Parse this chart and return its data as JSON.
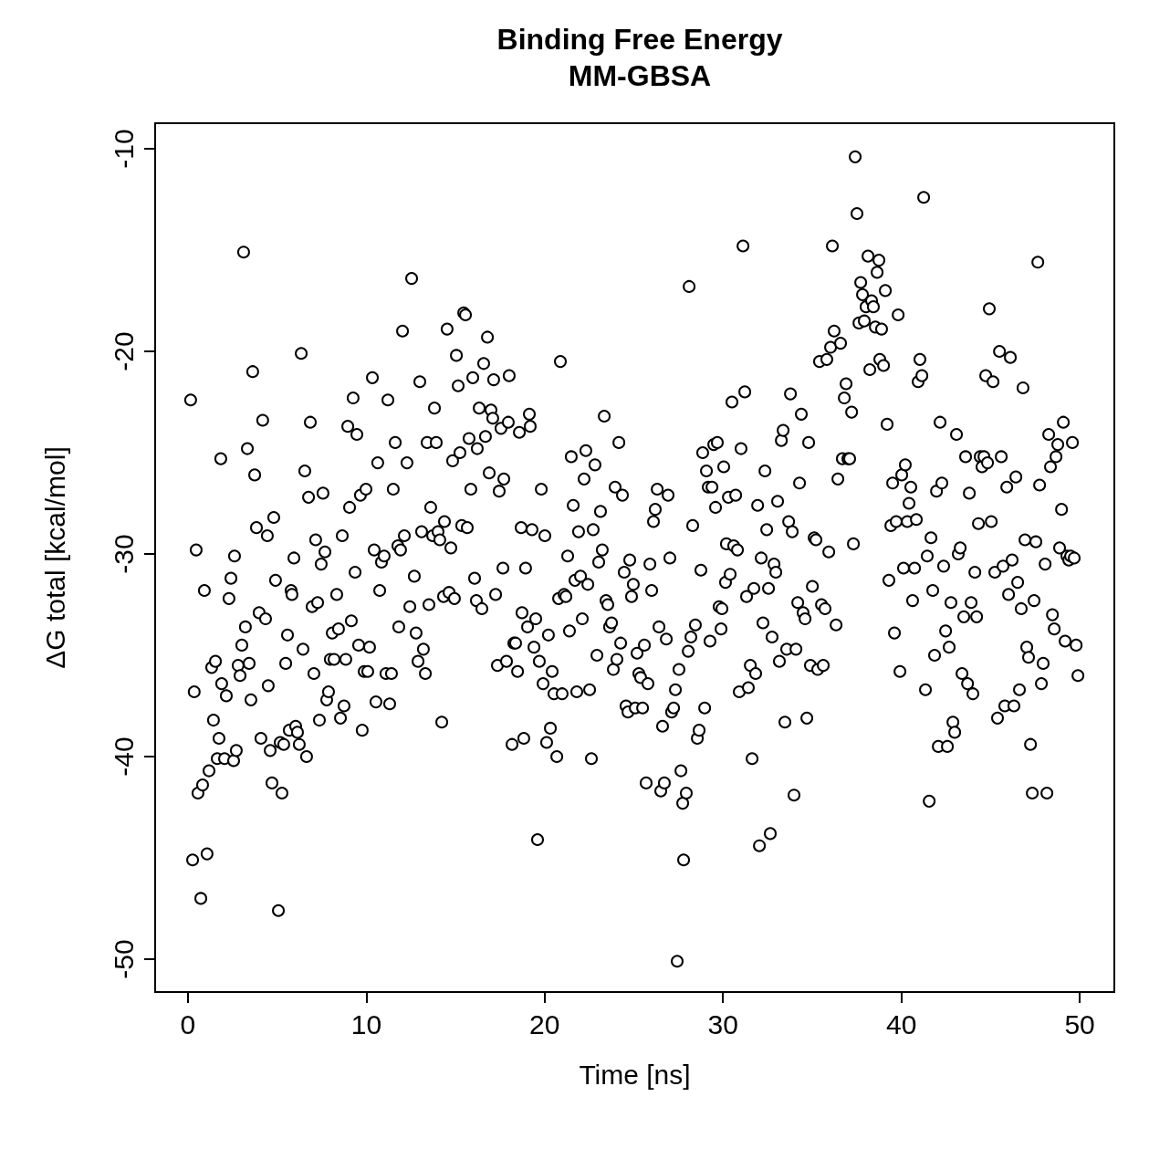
{
  "chart_data": {
    "type": "scatter",
    "title": "Binding Free Energy",
    "subtitle": "MM-GBSA",
    "xlabel": "Time [ns]",
    "ylabel": "ΔG total [kcal/mol]",
    "xlim": [
      -1.84,
      51.94
    ],
    "xticks": [
      0,
      10,
      20,
      30,
      40,
      50
    ],
    "ylim": [
      -51.62,
      -8.74
    ],
    "yticks": [
      -50,
      -40,
      -30,
      -20,
      -10
    ],
    "grid": false,
    "marker": "circle",
    "series": [
      {
        "color": "#000000",
        "x": [
          0.15,
          0.26,
          0.35,
          0.46,
          0.56,
          0.72,
          0.82,
          0.92,
          1.07,
          1.18,
          1.33,
          1.43,
          1.54,
          1.64,
          1.74,
          1.84,
          1.89,
          2.05,
          2.15,
          2.3,
          2.41,
          2.56,
          2.61,
          2.71,
          2.81,
          2.92,
          3.02,
          3.12,
          3.22,
          3.33,
          3.43,
          3.53,
          3.63,
          3.74,
          3.84,
          3.99,
          4.09,
          4.19,
          4.35,
          4.45,
          4.5,
          4.61,
          4.71,
          4.81,
          4.91,
          5.07,
          5.17,
          5.27,
          5.37,
          5.48,
          5.58,
          5.68,
          5.78,
          5.83,
          5.94,
          6.04,
          6.14,
          6.24,
          6.35,
          6.45,
          6.55,
          6.65,
          6.76,
          6.86,
          6.96,
          7.06,
          7.16,
          7.27,
          7.37,
          7.47,
          7.57,
          7.68,
          7.78,
          7.88,
          7.98,
          8.09,
          8.19,
          8.34,
          8.44,
          8.55,
          8.65,
          8.75,
          8.85,
          8.96,
          9.06,
          9.16,
          9.26,
          9.37,
          9.47,
          9.57,
          9.67,
          9.77,
          9.88,
          9.98,
          10.08,
          10.18,
          10.34,
          10.44,
          10.54,
          10.64,
          10.75,
          10.85,
          11.0,
          11.1,
          11.21,
          11.31,
          11.41,
          11.51,
          11.62,
          11.77,
          11.82,
          11.92,
          12.03,
          12.13,
          12.28,
          12.44,
          12.54,
          12.69,
          12.79,
          12.9,
          13.0,
          13.1,
          13.2,
          13.31,
          13.41,
          13.51,
          13.61,
          13.72,
          13.82,
          13.92,
          14.02,
          14.12,
          14.23,
          14.33,
          14.38,
          14.53,
          14.64,
          14.74,
          14.84,
          14.94,
          15.05,
          15.15,
          15.25,
          15.35,
          15.46,
          15.56,
          15.66,
          15.76,
          15.86,
          15.97,
          16.07,
          16.17,
          16.22,
          16.33,
          16.48,
          16.58,
          16.68,
          16.79,
          16.89,
          16.99,
          17.09,
          17.14,
          17.25,
          17.35,
          17.45,
          17.55,
          17.66,
          17.71,
          17.86,
          17.96,
          18.01,
          18.17,
          18.27,
          18.37,
          18.48,
          18.58,
          18.68,
          18.73,
          18.83,
          18.93,
          19.04,
          19.14,
          19.19,
          19.29,
          19.4,
          19.5,
          19.6,
          19.7,
          19.81,
          19.91,
          20.01,
          20.11,
          20.21,
          20.32,
          20.42,
          20.52,
          20.68,
          20.78,
          20.88,
          20.98,
          21.09,
          21.19,
          21.29,
          21.39,
          21.49,
          21.6,
          21.7,
          21.8,
          21.9,
          22.01,
          22.11,
          22.21,
          22.31,
          22.42,
          22.52,
          22.62,
          22.72,
          22.82,
          22.93,
          23.03,
          23.13,
          23.23,
          23.34,
          23.44,
          23.54,
          23.64,
          23.75,
          23.85,
          23.95,
          24.05,
          24.16,
          24.26,
          24.36,
          24.46,
          24.56,
          24.67,
          24.77,
          24.87,
          24.97,
          25.08,
          25.18,
          25.28,
          25.38,
          25.49,
          25.59,
          25.69,
          25.79,
          25.9,
          26.0,
          26.1,
          26.2,
          26.31,
          26.41,
          26.51,
          26.61,
          26.71,
          26.82,
          26.92,
          27.02,
          27.12,
          27.23,
          27.33,
          27.43,
          27.53,
          27.64,
          27.74,
          27.79,
          27.94,
          28.05,
          28.1,
          28.2,
          28.3,
          28.45,
          28.56,
          28.66,
          28.76,
          28.86,
          28.97,
          29.07,
          29.17,
          29.27,
          29.38,
          29.48,
          29.58,
          29.68,
          29.78,
          29.89,
          29.94,
          30.04,
          30.14,
          30.19,
          30.3,
          30.4,
          30.5,
          30.6,
          30.71,
          30.81,
          30.91,
          31.01,
          31.12,
          31.22,
          31.32,
          31.42,
          31.53,
          31.63,
          31.73,
          31.83,
          31.94,
          32.04,
          32.14,
          32.24,
          32.35,
          32.45,
          32.55,
          32.65,
          32.75,
          32.86,
          32.96,
          33.06,
          33.16,
          33.27,
          33.37,
          33.47,
          33.57,
          33.68,
          33.78,
          33.88,
          33.98,
          34.09,
          34.19,
          34.29,
          34.39,
          34.49,
          34.6,
          34.7,
          34.8,
          34.9,
          35.01,
          35.11,
          35.21,
          35.31,
          35.41,
          35.52,
          35.62,
          35.72,
          35.82,
          35.93,
          36.03,
          36.13,
          36.23,
          36.34,
          36.44,
          36.59,
          36.69,
          36.8,
          36.9,
          37.0,
          37.1,
          37.21,
          37.31,
          37.41,
          37.51,
          37.62,
          37.72,
          37.82,
          37.92,
          38.02,
          38.13,
          38.23,
          38.33,
          38.43,
          38.54,
          38.64,
          38.74,
          38.79,
          38.89,
          39.0,
          39.1,
          39.2,
          39.3,
          39.41,
          39.51,
          39.61,
          39.71,
          39.82,
          39.92,
          40.02,
          40.12,
          40.22,
          40.33,
          40.43,
          40.53,
          40.63,
          40.74,
          40.84,
          40.94,
          41.04,
          41.15,
          41.25,
          41.35,
          41.45,
          41.56,
          41.66,
          41.76,
          41.86,
          41.97,
          42.07,
          42.17,
          42.27,
          42.37,
          42.48,
          42.58,
          42.68,
          42.78,
          42.89,
          42.99,
          43.09,
          43.19,
          43.3,
          43.4,
          43.5,
          43.6,
          43.71,
          43.81,
          43.91,
          44.01,
          44.12,
          44.22,
          44.32,
          44.42,
          44.52,
          44.63,
          44.73,
          44.83,
          44.93,
          45.04,
          45.14,
          45.24,
          45.39,
          45.5,
          45.6,
          45.7,
          45.8,
          45.91,
          46.01,
          46.11,
          46.21,
          46.31,
          46.42,
          46.52,
          46.62,
          46.72,
          46.82,
          46.93,
          47.03,
          47.13,
          47.24,
          47.34,
          47.44,
          47.54,
          47.65,
          47.75,
          47.85,
          47.95,
          48.06,
          48.16,
          48.26,
          48.36,
          48.47,
          48.57,
          48.67,
          48.77,
          48.87,
          48.98,
          49.08,
          49.18,
          49.28,
          49.39,
          49.49,
          49.59,
          49.69,
          49.8,
          49.9
        ],
        "values": [
          -22.4,
          -45.1,
          -36.8,
          -29.8,
          -41.8,
          -47.0,
          -41.4,
          -31.8,
          -44.8,
          -40.7,
          -35.6,
          -38.2,
          -35.3,
          -40.1,
          -39.1,
          -25.3,
          -36.4,
          -40.1,
          -37.0,
          -32.2,
          -31.2,
          -40.2,
          -30.1,
          -39.7,
          -35.5,
          -36.0,
          -34.5,
          -15.1,
          -33.6,
          -24.8,
          -35.4,
          -37.2,
          -21.0,
          -26.1,
          -28.7,
          -32.9,
          -39.1,
          -23.4,
          -33.2,
          -29.1,
          -36.5,
          -39.7,
          -41.3,
          -28.2,
          -31.3,
          -47.6,
          -39.3,
          -41.8,
          -39.4,
          -35.4,
          -34.0,
          -38.7,
          -31.8,
          -32.0,
          -30.2,
          -38.5,
          -38.8,
          -39.4,
          -20.1,
          -34.7,
          -25.9,
          -40.0,
          -27.2,
          -23.5,
          -32.6,
          -35.9,
          -29.3,
          -32.4,
          -38.2,
          -30.5,
          -27.0,
          -29.9,
          -37.2,
          -36.8,
          -35.2,
          -33.9,
          -35.2,
          -32.0,
          -33.7,
          -38.1,
          -29.1,
          -37.5,
          -35.2,
          -23.7,
          -27.7,
          -33.3,
          -22.3,
          -30.9,
          -24.1,
          -34.5,
          -27.1,
          -38.7,
          -35.8,
          -26.8,
          -35.8,
          -34.6,
          -21.3,
          -29.8,
          -37.3,
          -25.5,
          -31.8,
          -30.4,
          -30.1,
          -35.9,
          -22.4,
          -37.4,
          -35.9,
          -26.8,
          -24.5,
          -29.6,
          -33.6,
          -29.8,
          -19.0,
          -29.1,
          -25.5,
          -32.6,
          -16.4,
          -31.1,
          -33.9,
          -35.3,
          -21.5,
          -28.9,
          -34.7,
          -35.9,
          -24.5,
          -32.5,
          -27.7,
          -29.1,
          -22.8,
          -24.5,
          -28.9,
          -29.3,
          -38.3,
          -32.1,
          -28.4,
          -18.9,
          -31.9,
          -29.7,
          -25.4,
          -32.2,
          -20.2,
          -21.7,
          -25.0,
          -28.6,
          -18.1,
          -18.2,
          -28.7,
          -24.3,
          -26.8,
          -21.3,
          -31.2,
          -32.3,
          -24.8,
          -22.8,
          -32.7,
          -20.6,
          -24.2,
          -19.3,
          -26.0,
          -22.9,
          -23.3,
          -21.4,
          -32.0,
          -35.5,
          -26.9,
          -23.8,
          -30.7,
          -26.3,
          -35.3,
          -23.5,
          -21.2,
          -39.4,
          -34.4,
          -34.4,
          -35.8,
          -24.0,
          -28.7,
          -32.9,
          -39.1,
          -30.7,
          -33.6,
          -23.1,
          -23.7,
          -28.8,
          -34.6,
          -33.2,
          -44.1,
          -35.3,
          -26.8,
          -36.4,
          -29.1,
          -39.3,
          -34.0,
          -38.6,
          -35.8,
          -36.9,
          -40.0,
          -32.2,
          -20.5,
          -36.9,
          -32.0,
          -32.1,
          -30.1,
          -33.8,
          -25.2,
          -27.6,
          -31.3,
          -36.8,
          -28.9,
          -31.1,
          -33.2,
          -26.3,
          -24.9,
          -31.5,
          -36.7,
          -40.1,
          -28.8,
          -25.6,
          -35.0,
          -30.4,
          -27.9,
          -29.8,
          -23.2,
          -32.3,
          -32.5,
          -33.6,
          -33.4,
          -35.7,
          -26.7,
          -35.2,
          -24.5,
          -34.4,
          -27.1,
          -30.9,
          -37.5,
          -37.8,
          -30.3,
          -32.1,
          -31.5,
          -37.6,
          -34.9,
          -35.9,
          -36.1,
          -37.6,
          -34.5,
          -41.3,
          -36.4,
          -30.5,
          -31.8,
          -28.4,
          -27.8,
          -26.8,
          -33.6,
          -41.7,
          -38.5,
          -41.3,
          -34.2,
          -27.1,
          -30.2,
          -37.8,
          -37.6,
          -36.7,
          -50.1,
          -35.7,
          -40.7,
          -42.3,
          -45.1,
          -41.8,
          -34.8,
          -16.8,
          -34.1,
          -28.6,
          -33.5,
          -39.1,
          -38.7,
          -30.8,
          -25.0,
          -37.6,
          -25.9,
          -26.7,
          -34.3,
          -26.7,
          -24.6,
          -27.7,
          -24.5,
          -32.6,
          -33.7,
          -32.7,
          -25.7,
          -31.4,
          -29.5,
          -27.2,
          -31.0,
          -22.5,
          -29.6,
          -27.1,
          -29.8,
          -36.8,
          -24.8,
          -14.8,
          -22.0,
          -32.1,
          -36.6,
          -35.5,
          -40.1,
          -31.7,
          -35.9,
          -27.6,
          -44.4,
          -30.2,
          -33.4,
          -25.9,
          -28.8,
          -31.7,
          -43.8,
          -34.1,
          -30.5,
          -30.9,
          -27.4,
          -35.3,
          -24.4,
          -23.9,
          -38.3,
          -34.7,
          -28.4,
          -22.1,
          -28.9,
          -41.9,
          -34.7,
          -32.4,
          -26.5,
          -23.1,
          -32.9,
          -33.2,
          -38.1,
          -24.5,
          -35.5,
          -31.6,
          -29.2,
          -29.3,
          -35.7,
          -20.5,
          -32.5,
          -35.5,
          -32.7,
          -20.4,
          -29.9,
          -19.8,
          -14.8,
          -19.0,
          -33.5,
          -26.3,
          -19.6,
          -25.3,
          -22.3,
          -21.6,
          -25.3,
          -25.3,
          -23.0,
          -29.5,
          -10.4,
          -13.2,
          -18.6,
          -16.6,
          -17.2,
          -18.5,
          -17.8,
          -15.3,
          -20.9,
          -17.5,
          -17.8,
          -18.8,
          -16.1,
          -15.5,
          -20.4,
          -18.9,
          -20.7,
          -17.0,
          -23.6,
          -31.3,
          -28.6,
          -26.5,
          -33.9,
          -28.4,
          -18.2,
          -35.8,
          -26.1,
          -30.7,
          -25.6,
          -28.4,
          -27.5,
          -26.7,
          -32.3,
          -30.7,
          -28.3,
          -21.5,
          -20.4,
          -21.2,
          -12.4,
          -36.7,
          -30.1,
          -42.2,
          -29.2,
          -31.8,
          -35.0,
          -26.9,
          -39.5,
          -23.5,
          -26.5,
          -30.6,
          -33.8,
          -39.5,
          -34.6,
          -32.4,
          -38.3,
          -38.8,
          -24.1,
          -30.0,
          -29.7,
          -35.9,
          -33.1,
          -25.2,
          -36.4,
          -27.0,
          -32.4,
          -36.9,
          -30.9,
          -33.1,
          -28.5,
          -25.2,
          -25.7,
          -25.2,
          -21.2,
          -25.5,
          -17.9,
          -28.4,
          -21.5,
          -30.9,
          -38.1,
          -20.0,
          -25.2,
          -30.6,
          -37.5,
          -26.7,
          -32.0,
          -20.3,
          -30.3,
          -37.5,
          -26.2,
          -31.4,
          -36.7,
          -32.7,
          -21.8,
          -29.3,
          -34.6,
          -35.1,
          -39.4,
          -41.8,
          -32.3,
          -29.4,
          -15.6,
          -26.6,
          -36.4,
          -35.4,
          -30.5,
          -41.8,
          -24.1,
          -25.7,
          -33.0,
          -33.7,
          -25.2,
          -24.6,
          -29.7,
          -27.8,
          -23.5,
          -34.3,
          -30.1,
          -30.3,
          -30.1,
          -24.5,
          -30.2,
          -34.5,
          -36.0
        ]
      }
    ]
  }
}
